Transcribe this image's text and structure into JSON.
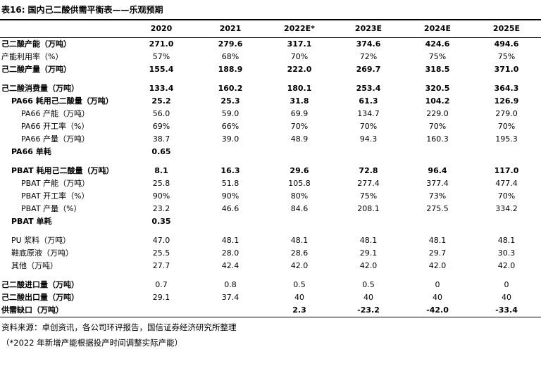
{
  "title": {
    "prefix": "表16:",
    "text": "国内己二酸供需平衡表——乐观预期"
  },
  "table": {
    "columns": [
      "2020",
      "2021",
      "2022E*",
      "2023E",
      "2024E",
      "2025E"
    ],
    "rows": [
      {
        "label": "己二酸产能（万吨）",
        "indent": 0,
        "labelBold": true,
        "valuesBold": true,
        "values": [
          "271.0",
          "279.6",
          "317.1",
          "374.6",
          "424.6",
          "494.6"
        ]
      },
      {
        "label": "产能利用率（%）",
        "indent": 0,
        "labelBold": false,
        "valuesBold": false,
        "values": [
          "57%",
          "68%",
          "70%",
          "72%",
          "75%",
          "75%"
        ]
      },
      {
        "label": "己二酸产量（万吨）",
        "indent": 0,
        "labelBold": true,
        "valuesBold": true,
        "values": [
          "155.4",
          "188.9",
          "222.0",
          "269.7",
          "318.5",
          "371.0"
        ]
      },
      {
        "spacer": true
      },
      {
        "label": "己二酸消费量（万吨）",
        "indent": 0,
        "labelBold": true,
        "valuesBold": true,
        "values": [
          "133.4",
          "160.2",
          "180.1",
          "253.4",
          "320.5",
          "364.3"
        ]
      },
      {
        "label": "PA66 耗用己二酸量（万吨）",
        "indent": 1,
        "labelBold": true,
        "valuesBold": true,
        "values": [
          "25.2",
          "25.3",
          "31.8",
          "61.3",
          "104.2",
          "126.9"
        ]
      },
      {
        "label": "PA66 产能（万吨）",
        "indent": 2,
        "labelBold": false,
        "valuesBold": false,
        "values": [
          "56.0",
          "59.0",
          "69.9",
          "134.7",
          "229.0",
          "279.0"
        ]
      },
      {
        "label": "PA66 开工率（%）",
        "indent": 2,
        "labelBold": false,
        "valuesBold": false,
        "values": [
          "69%",
          "66%",
          "70%",
          "70%",
          "70%",
          "70%"
        ]
      },
      {
        "label": "PA66 产量（万吨）",
        "indent": 2,
        "labelBold": false,
        "valuesBold": false,
        "values": [
          "38.7",
          "39.0",
          "48.9",
          "94.3",
          "160.3",
          "195.3"
        ]
      },
      {
        "label": "PA66 单耗",
        "indent": 1,
        "labelBold": true,
        "valuesBold": true,
        "values": [
          "0.65",
          "",
          "",
          "",
          "",
          ""
        ]
      },
      {
        "spacer": true
      },
      {
        "label": "PBAT 耗用己二酸量（万吨）",
        "indent": 1,
        "labelBold": true,
        "valuesBold": true,
        "values": [
          "8.1",
          "16.3",
          "29.6",
          "72.8",
          "96.4",
          "117.0"
        ]
      },
      {
        "label": "PBAT 产能（万吨）",
        "indent": 2,
        "labelBold": false,
        "valuesBold": false,
        "values": [
          "25.8",
          "51.8",
          "105.8",
          "277.4",
          "377.4",
          "477.4"
        ]
      },
      {
        "label": "PBAT 开工率（%）",
        "indent": 2,
        "labelBold": false,
        "valuesBold": false,
        "values": [
          "90%",
          "90%",
          "80%",
          "75%",
          "73%",
          "70%"
        ]
      },
      {
        "label": "PBAT 产量（%）",
        "indent": 2,
        "labelBold": false,
        "valuesBold": false,
        "values": [
          "23.2",
          "46.6",
          "84.6",
          "208.1",
          "275.5",
          "334.2"
        ]
      },
      {
        "label": "PBAT 单耗",
        "indent": 1,
        "labelBold": true,
        "valuesBold": true,
        "values": [
          "0.35",
          "",
          "",
          "",
          "",
          ""
        ]
      },
      {
        "spacer": true
      },
      {
        "label": "PU 浆料（万吨）",
        "indent": 1,
        "labelBold": false,
        "valuesBold": false,
        "values": [
          "47.0",
          "48.1",
          "48.1",
          "48.1",
          "48.1",
          "48.1"
        ]
      },
      {
        "label": "鞋底原液（万吨）",
        "indent": 1,
        "labelBold": false,
        "valuesBold": false,
        "values": [
          "25.5",
          "28.0",
          "28.6",
          "29.1",
          "29.7",
          "30.3"
        ]
      },
      {
        "label": "其他（万吨）",
        "indent": 1,
        "labelBold": false,
        "valuesBold": false,
        "values": [
          "27.7",
          "42.4",
          "42.0",
          "42.0",
          "42.0",
          "42.0"
        ]
      },
      {
        "spacer": true
      },
      {
        "label": "己二酸进口量（万吨）",
        "indent": 0,
        "labelBold": true,
        "valuesBold": false,
        "values": [
          "0.7",
          "0.8",
          "0.5",
          "0.5",
          "0",
          "0"
        ]
      },
      {
        "label": "己二酸出口量（万吨）",
        "indent": 0,
        "labelBold": true,
        "valuesBold": false,
        "values": [
          "29.1",
          "37.4",
          "40",
          "40",
          "40",
          "40"
        ]
      },
      {
        "label": "供需缺口（万吨）",
        "indent": 0,
        "labelBold": true,
        "valuesBold": true,
        "values": [
          "",
          "",
          "2.3",
          "-23.2",
          "-42.0",
          "-33.4"
        ]
      }
    ]
  },
  "footnotes": {
    "source": "资料来源：卓创资讯，各公司环评报告，国信证券经济研究所整理",
    "note": "（*2022 年新增产能根据投产时间调整实际产能）"
  }
}
